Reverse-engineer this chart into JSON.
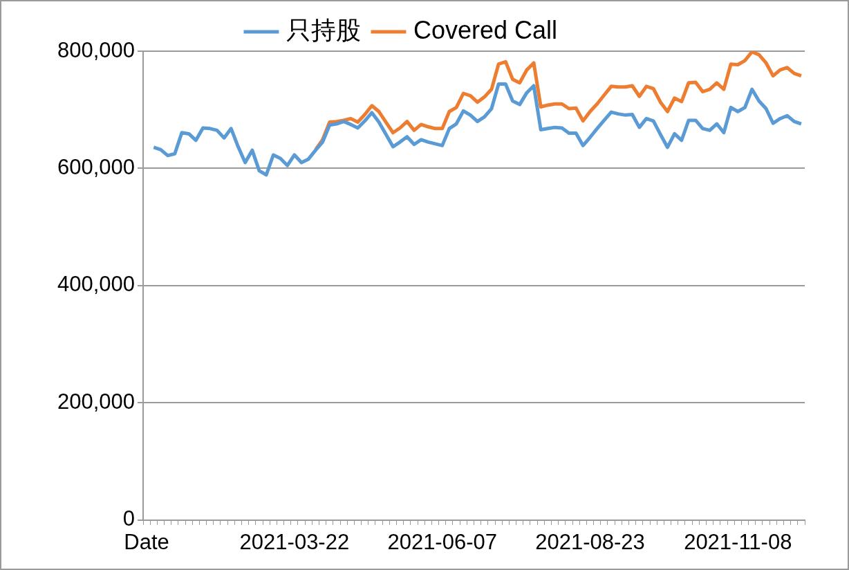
{
  "chart_data": {
    "type": "line",
    "categories": [
      "Date",
      null,
      null,
      null,
      null,
      null,
      null,
      null,
      null,
      null,
      null,
      null,
      null,
      null,
      null,
      null,
      null,
      null,
      null,
      null,
      null,
      "2021-03-22",
      null,
      null,
      null,
      null,
      null,
      null,
      null,
      null,
      null,
      null,
      null,
      null,
      null,
      null,
      null,
      null,
      null,
      null,
      null,
      null,
      "2021-06-07",
      null,
      null,
      null,
      null,
      null,
      null,
      null,
      null,
      null,
      null,
      null,
      null,
      null,
      null,
      null,
      null,
      null,
      null,
      null,
      null,
      "2021-08-23",
      null,
      null,
      null,
      null,
      null,
      null,
      null,
      null,
      null,
      null,
      null,
      null,
      null,
      null,
      null,
      null,
      null,
      null,
      null,
      null,
      "2021-11-08",
      null,
      null,
      null,
      null,
      null,
      null,
      null,
      null,
      null
    ],
    "series": [
      {
        "name": "只持股",
        "color": "#5b9bd5",
        "values": [
          null,
          636000,
          632000,
          622000,
          625000,
          661000,
          659000,
          648000,
          669000,
          668000,
          665000,
          652000,
          668000,
          637000,
          610000,
          631000,
          596000,
          589000,
          623000,
          617000,
          605000,
          623000,
          610000,
          616000,
          631000,
          645000,
          674000,
          676000,
          680000,
          675000,
          669000,
          681000,
          695000,
          679000,
          658000,
          637000,
          645000,
          654000,
          641000,
          649000,
          645000,
          642000,
          639000,
          668000,
          676000,
          698000,
          691000,
          680000,
          688000,
          702000,
          744000,
          744000,
          715000,
          709000,
          729000,
          741000,
          666000,
          668000,
          670000,
          669000,
          660000,
          660000,
          639000,
          653000,
          668000,
          682000,
          696000,
          693000,
          691000,
          692000,
          670000,
          685000,
          681000,
          658000,
          636000,
          659000,
          648000,
          682000,
          682000,
          668000,
          665000,
          676000,
          661000,
          704000,
          697000,
          704000,
          735000,
          715000,
          702000,
          677000,
          685000,
          690000,
          680000,
          676000
        ]
      },
      {
        "name": "Covered Call",
        "color": "#ed7d31",
        "values": [
          null,
          null,
          null,
          null,
          null,
          null,
          null,
          null,
          null,
          null,
          null,
          null,
          null,
          null,
          null,
          null,
          null,
          null,
          null,
          null,
          null,
          null,
          null,
          null,
          632000,
          649000,
          679000,
          680000,
          682000,
          685000,
          679000,
          692000,
          707000,
          697000,
          679000,
          661000,
          669000,
          680000,
          665000,
          675000,
          671000,
          668000,
          668000,
          697000,
          704000,
          728000,
          724000,
          713000,
          722000,
          735000,
          778000,
          782000,
          752000,
          746000,
          768000,
          780000,
          705000,
          708000,
          710000,
          710000,
          702000,
          703000,
          681000,
          697000,
          710000,
          725000,
          740000,
          739000,
          739000,
          741000,
          723000,
          740000,
          736000,
          713000,
          697000,
          720000,
          714000,
          746000,
          747000,
          731000,
          735000,
          746000,
          735000,
          778000,
          777000,
          784000,
          799000,
          794000,
          780000,
          758000,
          768000,
          772000,
          762000,
          758000
        ]
      }
    ],
    "ylim": [
      0,
      800000
    ],
    "yticks": [
      {
        "value": 0,
        "label": "0"
      },
      {
        "value": 200000,
        "label": "200,000"
      },
      {
        "value": 400000,
        "label": "400,000"
      },
      {
        "value": 600000,
        "label": "600,000"
      },
      {
        "value": 800000,
        "label": "800,000"
      }
    ],
    "grid": "y",
    "legend": "top"
  }
}
